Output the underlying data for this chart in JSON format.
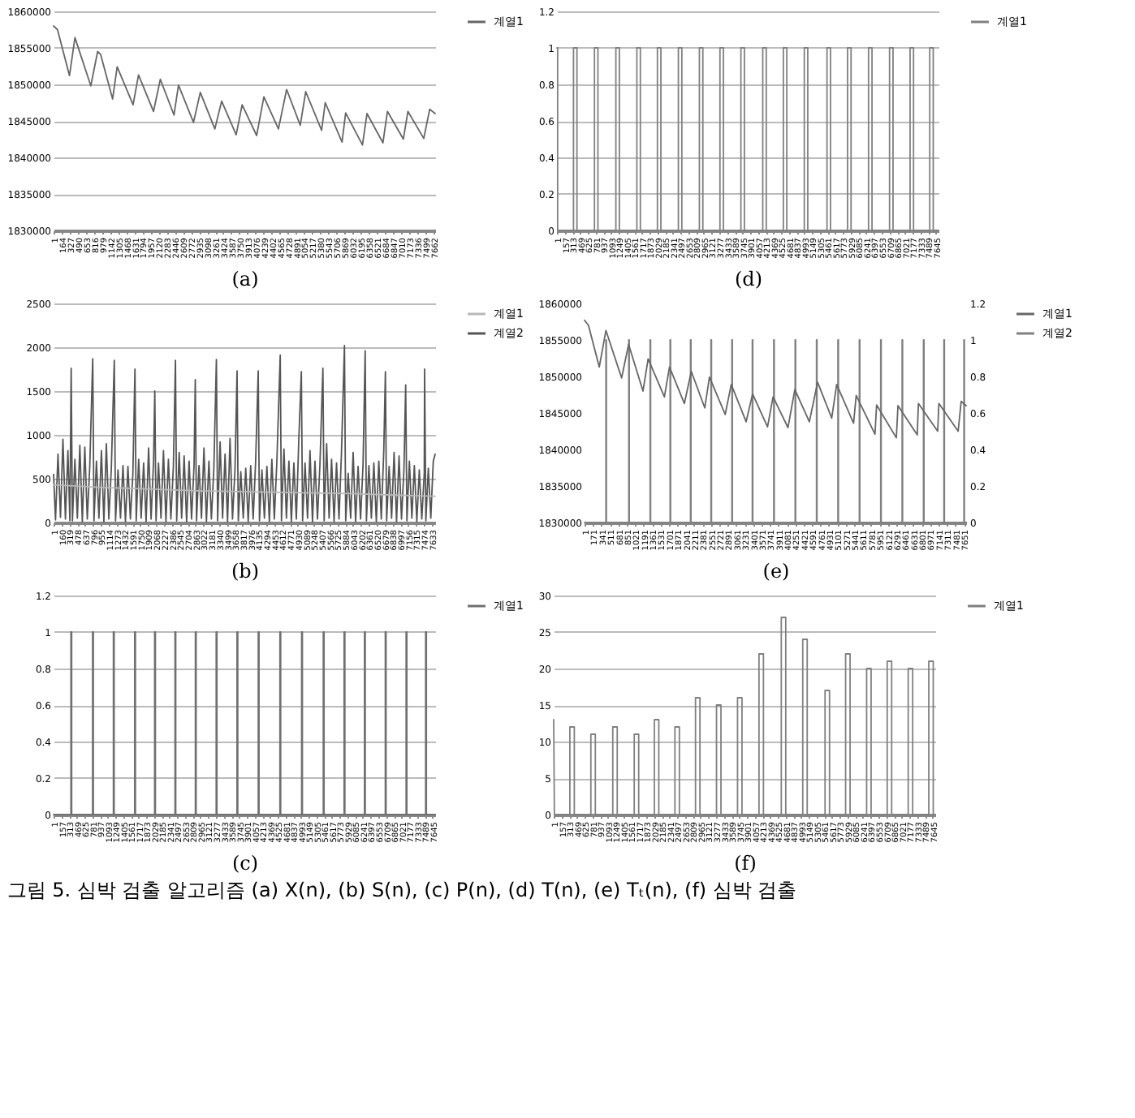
{
  "chart_data": [
    {
      "type": "line",
      "xlabel": "(a)",
      "xlim": [
        1,
        7700
      ],
      "ylim": [
        1830000,
        1860000
      ],
      "yticks": [
        1830000,
        1835000,
        1840000,
        1845000,
        1850000,
        1855000,
        1860000
      ],
      "grid": "y",
      "legend": "right",
      "annotations": [
        "그림 5.  심박 검출 알고리즘 (a) X(n), (b) S(n), (c) P(n), (d) T(n), (e) Tₜ(n), (f) 심박 검출"
      ],
      "xticks": [
        1,
        164,
        327,
        490,
        653,
        816,
        979,
        1142,
        1305,
        1468,
        1631,
        1794,
        1957,
        2120,
        2283,
        2446,
        2609,
        2772,
        2935,
        3098,
        3261,
        3424,
        3587,
        3750,
        3913,
        4076,
        4239,
        4402,
        4565,
        4728,
        4891,
        5054,
        5217,
        5380,
        5543,
        5706,
        5869,
        6032,
        6195,
        6358,
        6521,
        6684,
        6847,
        7010,
        7173,
        7336,
        7499,
        7662
      ],
      "series": [
        {
          "name": "계열1",
          "color": "#666666",
          "x": [
            1,
            80,
            322,
            432,
            752,
            890,
            950,
            1192,
            1284,
            1605,
            1715,
            2017,
            2155,
            2430,
            2521,
            2824,
            2961,
            3255,
            3392,
            3685,
            3805,
            4098,
            4244,
            4538,
            4703,
            4978,
            5088,
            5409,
            5482,
            5821,
            5894,
            6233,
            6325,
            6646,
            6737,
            7058,
            7150,
            7470,
            7590,
            7700
          ],
          "values": [
            1858000,
            1857500,
            1851200,
            1856400,
            1849800,
            1854500,
            1854100,
            1848000,
            1852400,
            1847200,
            1851300,
            1846300,
            1850700,
            1845800,
            1849900,
            1844800,
            1848900,
            1843900,
            1847700,
            1843100,
            1847200,
            1843000,
            1848300,
            1843900,
            1849300,
            1844400,
            1849000,
            1843700,
            1847500,
            1842100,
            1846100,
            1841700,
            1846000,
            1842000,
            1846300,
            1842500,
            1846300,
            1842600,
            1846600,
            1846000
          ]
        }
      ]
    },
    {
      "type": "line",
      "xlabel": "(d)",
      "xlim": [
        1,
        7700
      ],
      "ylim": [
        0,
        1.2
      ],
      "yticks": [
        0,
        0.2,
        0.4,
        0.6,
        0.8,
        1,
        1.2
      ],
      "grid": "y",
      "legend": "right",
      "xticks": [
        1,
        157,
        313,
        469,
        625,
        781,
        937,
        1093,
        1249,
        1405,
        1561,
        1717,
        1873,
        2029,
        2185,
        2341,
        2497,
        2653,
        2809,
        2965,
        3121,
        3277,
        3433,
        3589,
        3745,
        3901,
        4057,
        4213,
        4369,
        4525,
        4681,
        4837,
        4993,
        5149,
        5305,
        5461,
        5617,
        5773,
        5929,
        6085,
        6241,
        6397,
        6553,
        6709,
        6865,
        7021,
        7177,
        7333,
        7489,
        7645
      ],
      "series": [
        {
          "name": "계열1",
          "color": "#808080",
          "x": [
            1,
            15,
            15,
            335,
            335,
            405,
            405,
            758,
            758,
            828,
            828,
            1190,
            1190,
            1260,
            1260,
            1614,
            1614,
            1684,
            1684,
            2028,
            2028,
            2098,
            2098,
            2451,
            2451,
            2521,
            2521,
            2875,
            2875,
            2945,
            2945,
            3290,
            3290,
            3360,
            3360,
            3713,
            3713,
            3783,
            3783,
            4154,
            4154,
            4224,
            4224,
            4569,
            4569,
            4639,
            4639,
            4992,
            4992,
            5062,
            5062,
            5450,
            5450,
            5520,
            5520,
            5865,
            5865,
            5935,
            5935,
            6288,
            6288,
            6358,
            6358,
            6712,
            6712,
            6782,
            6782,
            7126,
            7126,
            7196,
            7196,
            7523,
            7523,
            7593,
            7593,
            7700
          ],
          "values": [
            1,
            1,
            0,
            0,
            1,
            1,
            0,
            0,
            1,
            1,
            0,
            0,
            1,
            1,
            0,
            0,
            1,
            1,
            0,
            0,
            1,
            1,
            0,
            0,
            1,
            1,
            0,
            0,
            1,
            1,
            0,
            0,
            1,
            1,
            0,
            0,
            1,
            1,
            0,
            0,
            1,
            1,
            0,
            0,
            1,
            1,
            0,
            0,
            1,
            1,
            0,
            0,
            1,
            1,
            0,
            0,
            1,
            1,
            0,
            0,
            1,
            1,
            0,
            0,
            1,
            1,
            0,
            0,
            1,
            1,
            0,
            0,
            1,
            1,
            0,
            0
          ]
        }
      ]
    },
    {
      "type": "line",
      "xlabel": "(b)",
      "xlim": [
        1,
        7700
      ],
      "ylim": [
        0,
        2500
      ],
      "yticks": [
        0,
        500,
        1000,
        1500,
        2000,
        2500
      ],
      "grid": "y",
      "legend": "right",
      "xticks": [
        1,
        160,
        319,
        478,
        637,
        796,
        955,
        1114,
        1273,
        1432,
        1591,
        1750,
        1909,
        2068,
        2227,
        2386,
        2545,
        2704,
        2863,
        3022,
        3181,
        3340,
        3499,
        3658,
        3817,
        3976,
        4135,
        4294,
        4453,
        4612,
        4771,
        4930,
        5089,
        5248,
        5407,
        5566,
        5725,
        5884,
        6043,
        6202,
        6361,
        6520,
        6679,
        6838,
        6997,
        7156,
        7315,
        7474,
        7633
      ],
      "series": [
        {
          "name": "계열1",
          "color": "#b8b8b8",
          "x": [
            1,
            1000,
            2000,
            3000,
            4000,
            5000,
            6000,
            7000,
            7700
          ],
          "values": [
            430,
            400,
            380,
            360,
            350,
            340,
            330,
            310,
            300
          ]
        },
        {
          "name": "계열2",
          "color": "#555555",
          "x": [
            1,
            40,
            90,
            140,
            190,
            240,
            290,
            330,
            356,
            381,
            431,
            481,
            531,
            581,
            631,
            681,
            731,
            791,
            816,
            866,
            916,
            966,
            1016,
            1066,
            1116,
            1166,
            1226,
            1251,
            1301,
            1351,
            1401,
            1451,
            1501,
            1551,
            1601,
            1643,
            1668,
            1718,
            1768,
            1818,
            1868,
            1918,
            1968,
            2018,
            2043,
            2068,
            2118,
            2168,
            2218,
            2268,
            2318,
            2368,
            2418,
            2460,
            2485,
            2535,
            2585,
            2635,
            2685,
            2735,
            2785,
            2835,
            2860,
            2885,
            2935,
            2985,
            3035,
            3085,
            3135,
            3185,
            3235,
            3286,
            3311,
            3361,
            3411,
            3461,
            3511,
            3561,
            3611,
            3661,
            3703,
            3728,
            3778,
            3828,
            3878,
            3928,
            3978,
            4028,
            4078,
            4130,
            4155,
            4205,
            4255,
            4305,
            4355,
            4405,
            4455,
            4505,
            4574,
            4599,
            4649,
            4699,
            4749,
            4799,
            4849,
            4899,
            4949,
            5000,
            5025,
            5075,
            5125,
            5175,
            5225,
            5275,
            5325,
            5375,
            5435,
            5460,
            5510,
            5560,
            5610,
            5660,
            5710,
            5760,
            5810,
            5870,
            5895,
            5945,
            5995,
            6045,
            6095,
            6145,
            6195,
            6245,
            6288,
            6313,
            6363,
            6413,
            6463,
            6513,
            6563,
            6613,
            6663,
            6696,
            6721,
            6771,
            6821,
            6871,
            6921,
            6971,
            7021,
            7071,
            7105,
            7130,
            7180,
            7230,
            7280,
            7330,
            7380,
            7430,
            7480,
            7487,
            7512,
            7562,
            7612,
            7662,
            7700
          ],
          "values": [
            550,
            30,
            780,
            60,
            950,
            40,
            820,
            20,
            1760,
            20,
            720,
            50,
            880,
            10,
            860,
            40,
            640,
            1870,
            20,
            700,
            50,
            820,
            10,
            900,
            40,
            620,
            1850,
            20,
            600,
            50,
            650,
            10,
            640,
            40,
            560,
            1750,
            20,
            720,
            50,
            680,
            10,
            850,
            40,
            700,
            1500,
            20,
            680,
            50,
            820,
            10,
            720,
            40,
            640,
            1850,
            20,
            800,
            50,
            760,
            10,
            700,
            40,
            650,
            1630,
            20,
            650,
            50,
            850,
            10,
            700,
            40,
            620,
            1860,
            20,
            920,
            50,
            780,
            10,
            960,
            40,
            600,
            1730,
            20,
            580,
            50,
            620,
            10,
            650,
            40,
            700,
            1730,
            20,
            600,
            50,
            640,
            10,
            720,
            40,
            680,
            1910,
            20,
            840,
            50,
            700,
            10,
            680,
            40,
            950,
            1720,
            20,
            680,
            50,
            820,
            10,
            700,
            40,
            660,
            1760,
            20,
            900,
            50,
            720,
            10,
            680,
            40,
            800,
            2020,
            20,
            560,
            50,
            800,
            10,
            640,
            40,
            660,
            1960,
            20,
            650,
            50,
            680,
            10,
            700,
            40,
            820,
            1720,
            20,
            640,
            50,
            800,
            10,
            760,
            40,
            620,
            1570,
            20,
            700,
            50,
            650,
            10,
            600,
            40,
            560,
            1750,
            20,
            620,
            50,
            700,
            780
          ]
        }
      ]
    },
    {
      "type": "line",
      "xlabel": "(e)",
      "xlim": [
        1,
        7700
      ],
      "ylim": [
        1830000,
        1860000
      ],
      "yticks": [
        1830000,
        1835000,
        1840000,
        1845000,
        1850000,
        1855000,
        1860000
      ],
      "y2lim": [
        0,
        1.2
      ],
      "y2ticks": [
        0,
        0.2,
        0.4,
        0.6,
        0.8,
        1,
        1.2
      ],
      "legend": "right",
      "xticks": [
        1,
        171,
        341,
        511,
        681,
        851,
        1021,
        1191,
        1361,
        1531,
        1701,
        1871,
        2041,
        2211,
        2381,
        2551,
        2721,
        2891,
        3061,
        3231,
        3401,
        3571,
        3741,
        3911,
        4081,
        4251,
        4421,
        4591,
        4761,
        4931,
        5101,
        5271,
        5441,
        5611,
        5781,
        5951,
        6121,
        6291,
        6461,
        6631,
        6801,
        6971,
        7141,
        7311,
        7481,
        7651
      ],
      "series": [
        {
          "name": "계열1",
          "color": "#666666",
          "x": [
            1,
            80,
            298,
            432,
            749,
            890,
            1180,
            1284,
            1612,
            1715,
            2015,
            2155,
            2427,
            2521,
            2839,
            2961,
            3261,
            3392,
            3693,
            3805,
            4105,
            4244,
            4537,
            4703,
            4988,
            5088,
            5429,
            5482,
            5861,
            5894,
            6292,
            6325,
            6714,
            6737,
            7126,
            7150,
            7539,
            7600,
            7700
          ],
          "values": [
            1857700,
            1857000,
            1851300,
            1856300,
            1849800,
            1854400,
            1848000,
            1852400,
            1847200,
            1851300,
            1846300,
            1850700,
            1845700,
            1849900,
            1844800,
            1848900,
            1843800,
            1847600,
            1843100,
            1847200,
            1843000,
            1848200,
            1843800,
            1849200,
            1844300,
            1848900,
            1843600,
            1847400,
            1842100,
            1846100,
            1841600,
            1846000,
            1842000,
            1846300,
            1842500,
            1846300,
            1842500,
            1846600,
            1846000
          ]
        },
        {
          "name": "계열2",
          "color": "#808080",
          "axis": "y2",
          "x": [
            1,
            432,
            432,
            442,
            442,
            893,
            893,
            903,
            903,
            1324,
            1324,
            1334,
            1334,
            1727,
            1727,
            1737,
            1737,
            2139,
            2139,
            2149,
            2149,
            2552,
            2552,
            2562,
            2562,
            2974,
            2974,
            2984,
            2984,
            3386,
            3386,
            3396,
            3396,
            3818,
            3818,
            3828,
            3828,
            4250,
            4250,
            4260,
            4260,
            4681,
            4681,
            4691,
            4691,
            5113,
            5113,
            5123,
            5123,
            5545,
            5545,
            5555,
            5555,
            5976,
            5976,
            5986,
            5986,
            6408,
            6408,
            6418,
            6418,
            6840,
            6840,
            6850,
            6850,
            7252,
            7252,
            7262,
            7262,
            7655,
            7655,
            7665,
            7665,
            7700
          ],
          "values": [
            0,
            0,
            1,
            1,
            0,
            0,
            1,
            1,
            0,
            0,
            1,
            1,
            0,
            0,
            1,
            1,
            0,
            0,
            1,
            1,
            0,
            0,
            1,
            1,
            0,
            0,
            1,
            1,
            0,
            0,
            1,
            1,
            0,
            0,
            1,
            1,
            0,
            0,
            1,
            1,
            0,
            0,
            1,
            1,
            0,
            0,
            1,
            1,
            0,
            0,
            1,
            1,
            0,
            0,
            1,
            1,
            0,
            0,
            1,
            1,
            0,
            0,
            1,
            1,
            0,
            0,
            1,
            1,
            0,
            0,
            1,
            1,
            0,
            0
          ]
        }
      ]
    },
    {
      "type": "line",
      "xlabel": "(c)",
      "xlim": [
        1,
        7700
      ],
      "ylim": [
        0,
        1.2
      ],
      "yticks": [
        0,
        0.2,
        0.4,
        0.6,
        0.8,
        1,
        1.2
      ],
      "grid": "y",
      "legend": "right",
      "xticks": [
        1,
        157,
        313,
        469,
        625,
        781,
        937,
        1093,
        1249,
        1405,
        1561,
        1717,
        1873,
        2029,
        2185,
        2341,
        2497,
        2653,
        2809,
        2965,
        3121,
        3277,
        3433,
        3589,
        3745,
        3901,
        4057,
        4213,
        4369,
        4525,
        4681,
        4837,
        4993,
        5149,
        5305,
        5461,
        5617,
        5773,
        5929,
        6085,
        6241,
        6397,
        6553,
        6709,
        6865,
        7021,
        7177,
        7333,
        7489,
        7645
      ],
      "series": [
        {
          "name": "계열1",
          "color": "#707070",
          "x": [
            1,
            351,
            351,
            366,
            366,
            788,
            788,
            803,
            803,
            1208,
            1208,
            1223,
            1223,
            1637,
            1637,
            1652,
            1652,
            2040,
            2040,
            2055,
            2055,
            2451,
            2451,
            2466,
            2466,
            2862,
            2862,
            2877,
            2877,
            3282,
            3282,
            3297,
            3297,
            3702,
            3702,
            3717,
            3717,
            4131,
            4131,
            4146,
            4146,
            4568,
            4568,
            4583,
            4583,
            5006,
            5006,
            5021,
            5021,
            5443,
            5443,
            5458,
            5458,
            5863,
            5863,
            5878,
            5878,
            6274,
            6274,
            6289,
            6289,
            6694,
            6694,
            6709,
            6709,
            7114,
            7114,
            7129,
            7129,
            7508,
            7508,
            7523,
            7523,
            7700
          ],
          "values": [
            0,
            0,
            1,
            1,
            0,
            0,
            1,
            1,
            0,
            0,
            1,
            1,
            0,
            0,
            1,
            1,
            0,
            0,
            1,
            1,
            0,
            0,
            1,
            1,
            0,
            0,
            1,
            1,
            0,
            0,
            1,
            1,
            0,
            0,
            1,
            1,
            0,
            0,
            1,
            1,
            0,
            0,
            1,
            1,
            0,
            0,
            1,
            1,
            0,
            0,
            1,
            1,
            0,
            0,
            1,
            1,
            0,
            0,
            1,
            1,
            0,
            0,
            1,
            1,
            0,
            0,
            1,
            1,
            0,
            0,
            1,
            1,
            0,
            0
          ]
        }
      ]
    },
    {
      "type": "line",
      "xlabel": "(f)",
      "xlim": [
        1,
        7700
      ],
      "ylim": [
        0,
        30
      ],
      "yticks": [
        0,
        5,
        10,
        15,
        20,
        25,
        30
      ],
      "grid": "y",
      "legend": "right",
      "xticks": [
        1,
        157,
        313,
        469,
        625,
        781,
        937,
        1093,
        1249,
        1405,
        1561,
        1717,
        1873,
        2029,
        2185,
        2341,
        2497,
        2653,
        2809,
        2965,
        3121,
        3277,
        3433,
        3589,
        3745,
        3901,
        4057,
        4213,
        4369,
        4525,
        4681,
        4837,
        4993,
        5149,
        5305,
        5461,
        5617,
        5773,
        5929,
        6085,
        6241,
        6397,
        6553,
        6709,
        6865,
        7021,
        7177,
        7333,
        7489,
        7645
      ],
      "series": [
        {
          "name": "계열1",
          "color": "#808080",
          "x": [
            1,
            15,
            327,
            327,
            417,
            417,
            751,
            751,
            841,
            841,
            1193,
            1193,
            1283,
            1283,
            1626,
            1626,
            1716,
            1716,
            2032,
            2032,
            2122,
            2122,
            2447,
            2447,
            2537,
            2537,
            2862,
            2862,
            2952,
            2952,
            3286,
            3286,
            3376,
            3376,
            3710,
            3710,
            3800,
            3800,
            4143,
            4143,
            4233,
            4233,
            4593,
            4593,
            4683,
            4683,
            5026,
            5026,
            5116,
            5116,
            5476,
            5476,
            5566,
            5566,
            5891,
            5891,
            5981,
            5981,
            6315,
            6315,
            6405,
            6405,
            6730,
            6730,
            6820,
            6820,
            7154,
            7154,
            7244,
            7244,
            7569,
            7569,
            7659,
            7659,
            7700
          ],
          "values": [
            13,
            0,
            0,
            12,
            12,
            0,
            0,
            11,
            11,
            0,
            0,
            12,
            12,
            0,
            0,
            11,
            11,
            0,
            0,
            13,
            13,
            0,
            0,
            12,
            12,
            0,
            0,
            16,
            16,
            0,
            0,
            15,
            15,
            0,
            0,
            16,
            16,
            0,
            0,
            22,
            22,
            0,
            0,
            27,
            27,
            0,
            0,
            24,
            24,
            0,
            0,
            17,
            17,
            0,
            0,
            22,
            22,
            0,
            0,
            20,
            20,
            0,
            0,
            21,
            21,
            0,
            0,
            20,
            20,
            0,
            0,
            21,
            21,
            0,
            0
          ]
        }
      ]
    }
  ]
}
